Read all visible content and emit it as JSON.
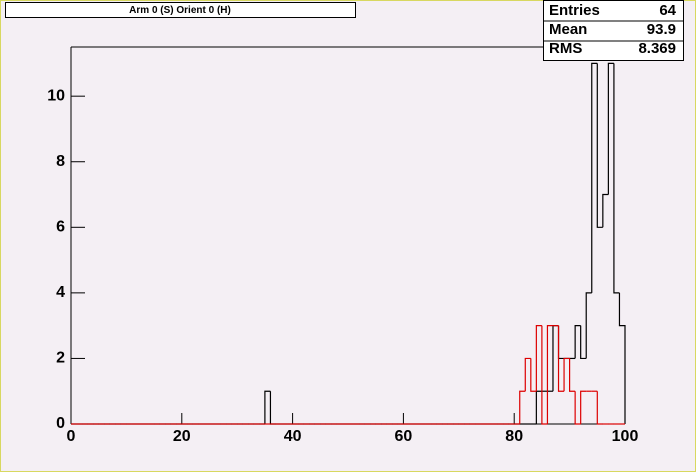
{
  "chart_data": {
    "type": "histogram",
    "title": "Arm 0 (S) Orient 0 (H)",
    "bins": [
      0,
      1,
      2,
      3,
      4,
      5,
      6,
      7,
      8,
      9,
      10,
      11,
      12,
      13,
      14,
      15,
      16,
      17,
      18,
      19,
      20,
      21,
      22,
      23,
      24,
      25,
      26,
      27,
      28,
      29,
      30,
      31,
      32,
      33,
      34,
      35,
      36,
      37,
      38,
      39,
      40,
      41,
      42,
      43,
      44,
      45,
      46,
      47,
      48,
      49,
      50,
      51,
      52,
      53,
      54,
      55,
      56,
      57,
      58,
      59,
      60,
      61,
      62,
      63,
      64,
      65,
      66,
      67,
      68,
      69,
      70,
      71,
      72,
      73,
      74,
      75,
      76,
      77,
      78,
      79,
      80,
      81,
      82,
      83,
      84,
      85,
      86,
      87,
      88,
      89,
      90,
      91,
      92,
      93,
      94,
      95,
      96,
      97,
      98,
      99,
      100
    ],
    "series": [
      {
        "color": "#000000",
        "values": [
          0,
          0,
          0,
          0,
          0,
          0,
          0,
          0,
          0,
          0,
          0,
          0,
          0,
          0,
          0,
          0,
          0,
          0,
          0,
          0,
          0,
          0,
          0,
          0,
          0,
          0,
          0,
          0,
          0,
          0,
          0,
          0,
          0,
          0,
          0,
          1,
          0,
          0,
          0,
          0,
          0,
          0,
          0,
          0,
          0,
          0,
          0,
          0,
          0,
          0,
          0,
          0,
          0,
          0,
          0,
          0,
          0,
          0,
          0,
          0,
          0,
          0,
          0,
          0,
          0,
          0,
          0,
          0,
          0,
          0,
          0,
          0,
          0,
          0,
          0,
          0,
          0,
          0,
          0,
          0,
          0,
          0,
          0,
          0,
          1,
          1,
          1,
          3,
          2,
          2,
          2,
          3,
          2,
          4,
          11,
          6,
          7,
          11,
          4,
          3
        ]
      },
      {
        "color": "#dd0000",
        "values": [
          0,
          0,
          0,
          0,
          0,
          0,
          0,
          0,
          0,
          0,
          0,
          0,
          0,
          0,
          0,
          0,
          0,
          0,
          0,
          0,
          0,
          0,
          0,
          0,
          0,
          0,
          0,
          0,
          0,
          0,
          0,
          0,
          0,
          0,
          0,
          0,
          0,
          0,
          0,
          0,
          0,
          0,
          0,
          0,
          0,
          0,
          0,
          0,
          0,
          0,
          0,
          0,
          0,
          0,
          0,
          0,
          0,
          0,
          0,
          0,
          0,
          0,
          0,
          0,
          0,
          0,
          0,
          0,
          0,
          0,
          0,
          0,
          0,
          0,
          0,
          0,
          0,
          0,
          0,
          0,
          0,
          1,
          2,
          1,
          3,
          0,
          3,
          3,
          1,
          2,
          1,
          0,
          1,
          1,
          1,
          0,
          0,
          0,
          0,
          0
        ]
      }
    ],
    "xlim": [
      0,
      100
    ],
    "xticks": [
      0,
      20,
      40,
      60,
      80,
      100
    ],
    "ylim": [
      0,
      11.5
    ],
    "yticks": [
      0,
      2,
      4,
      6,
      8,
      10
    ],
    "stats": {
      "labels": [
        "Entries",
        "Mean",
        "RMS"
      ],
      "values": [
        64,
        93.9,
        8.369
      ]
    }
  }
}
